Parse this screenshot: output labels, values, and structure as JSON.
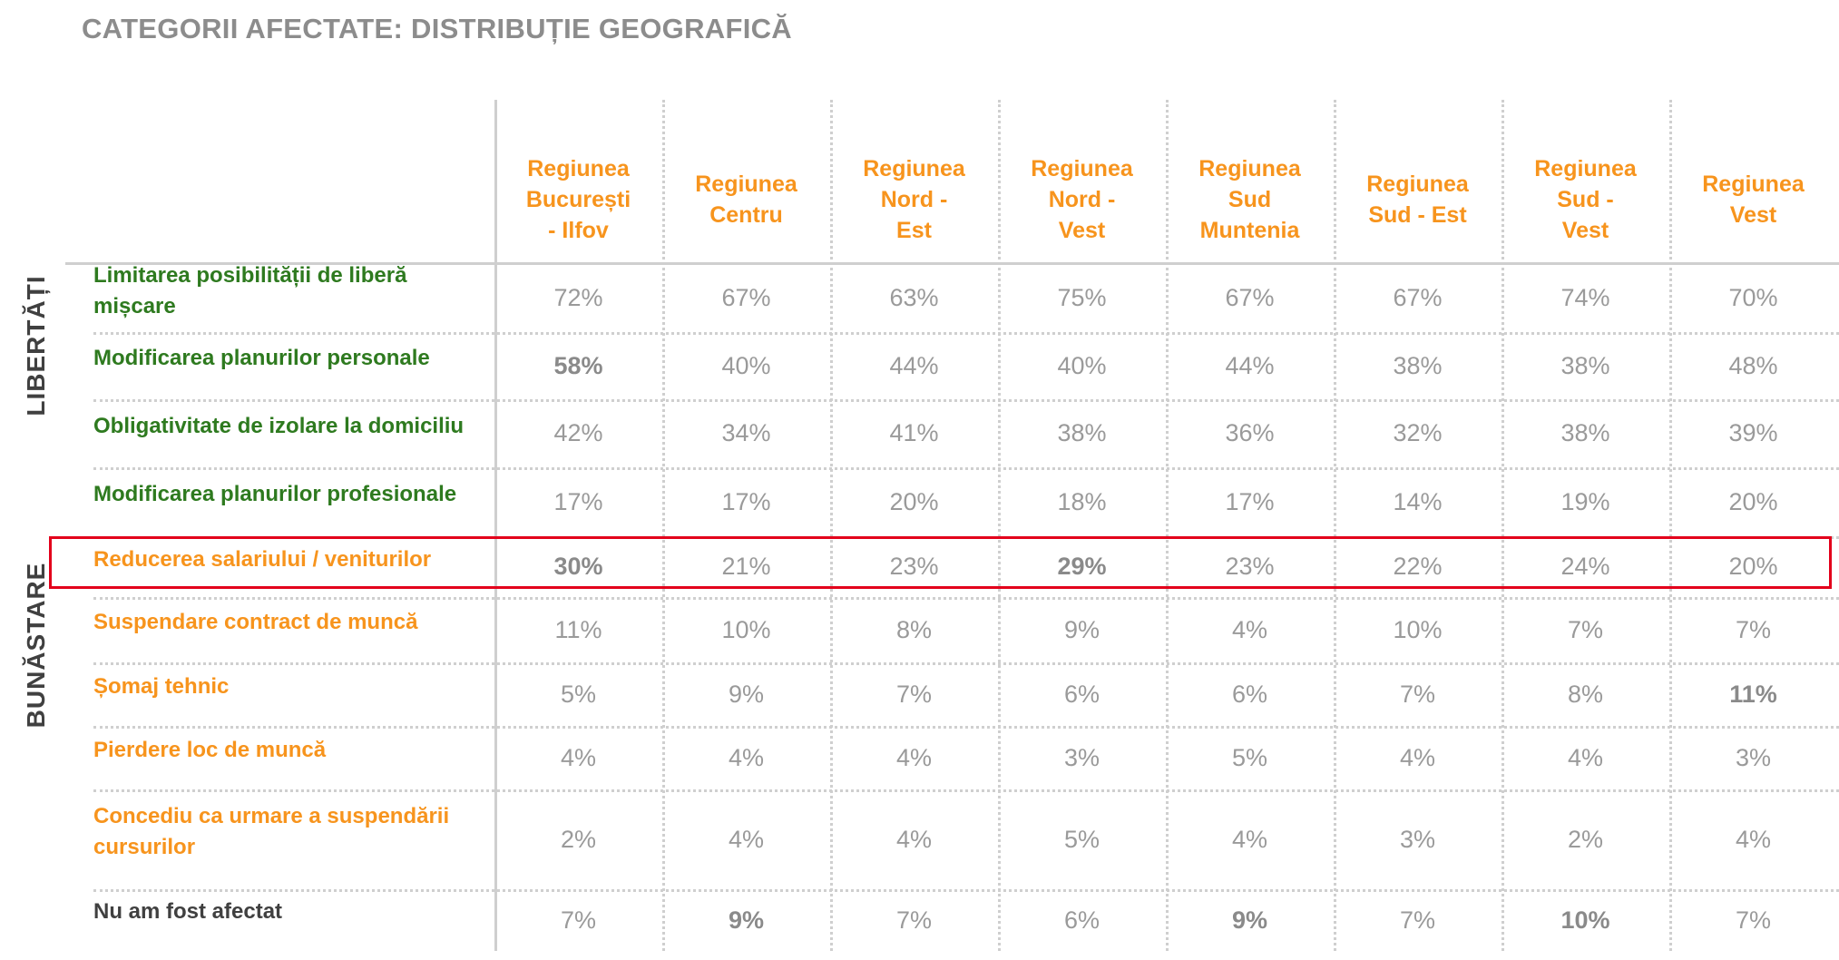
{
  "title": "CATEGORII AFECTATE:  DISTRIBUȚIE GEOGRAFICĂ",
  "groups": {
    "libertati": "LIBERTĂȚI",
    "bunastare": "BUNĂSTARE"
  },
  "colors": {
    "green": "#2e7a1f",
    "orange": "#f7941d",
    "highlight": "#e3001b"
  },
  "chart_data": {
    "type": "table",
    "columns": [
      "Regiunea București - Ilfov",
      "Regiunea Centru",
      "Regiunea Nord - Est",
      "Regiunea Nord - Vest",
      "Regiunea Sud Muntenia",
      "Regiunea Sud - Est",
      "Regiunea Sud - Vest",
      "Regiunea Vest"
    ],
    "column_lines": [
      [
        "Regiunea",
        "București",
        "- Ilfov"
      ],
      [
        "Regiunea",
        "Centru"
      ],
      [
        "Regiunea",
        "Nord -",
        "Est"
      ],
      [
        "Regiunea",
        "Nord -",
        "Vest"
      ],
      [
        "Regiunea",
        "Sud",
        "Muntenia"
      ],
      [
        "Regiunea",
        "Sud - Est"
      ],
      [
        "Regiunea",
        "Sud -",
        "Vest"
      ],
      [
        "Regiunea",
        "Vest"
      ]
    ],
    "rows": [
      {
        "label": "Limitarea posibilității de liberă mișcare",
        "group": "libertati",
        "values": [
          "72%",
          "67%",
          "63%",
          "75%",
          "67%",
          "67%",
          "74%",
          "70%"
        ],
        "bold": []
      },
      {
        "label": "Modificarea planurilor personale",
        "group": "libertati",
        "values": [
          "58%",
          "40%",
          "44%",
          "40%",
          "44%",
          "38%",
          "38%",
          "48%"
        ],
        "bold": [
          0
        ]
      },
      {
        "label": "Obligativitate de izolare la domiciliu",
        "group": "libertati",
        "values": [
          "42%",
          "34%",
          "41%",
          "38%",
          "36%",
          "32%",
          "38%",
          "39%"
        ],
        "bold": []
      },
      {
        "label": "Modificarea planurilor profesionale",
        "group": "libertati",
        "values": [
          "17%",
          "17%",
          "20%",
          "18%",
          "17%",
          "14%",
          "19%",
          "20%"
        ],
        "bold": []
      },
      {
        "label": "Reducerea salariului / veniturilor",
        "group": "bunastare",
        "values": [
          "30%",
          "21%",
          "23%",
          "29%",
          "23%",
          "22%",
          "24%",
          "20%"
        ],
        "bold": [
          0,
          3
        ],
        "highlighted": true
      },
      {
        "label": "Suspendare contract de muncă",
        "group": "bunastare",
        "values": [
          "11%",
          "10%",
          "8%",
          "9%",
          "4%",
          "10%",
          "7%",
          "7%"
        ],
        "bold": []
      },
      {
        "label": "Șomaj tehnic",
        "group": "bunastare",
        "values": [
          "5%",
          "9%",
          "7%",
          "6%",
          "6%",
          "7%",
          "8%",
          "11%"
        ],
        "bold": [
          7
        ]
      },
      {
        "label": "Pierdere loc de muncă",
        "group": "bunastare",
        "values": [
          "4%",
          "4%",
          "4%",
          "3%",
          "5%",
          "4%",
          "4%",
          "3%"
        ],
        "bold": []
      },
      {
        "label": "Concediu ca urmare a suspendării cursurilor",
        "group": "bunastare",
        "values": [
          "2%",
          "4%",
          "4%",
          "5%",
          "4%",
          "3%",
          "2%",
          "4%"
        ],
        "bold": []
      },
      {
        "label": "Nu am fost afectat",
        "group": "none",
        "values": [
          "7%",
          "9%",
          "7%",
          "6%",
          "9%",
          "7%",
          "10%",
          "7%"
        ],
        "bold": [
          1,
          4,
          6
        ]
      }
    ]
  }
}
